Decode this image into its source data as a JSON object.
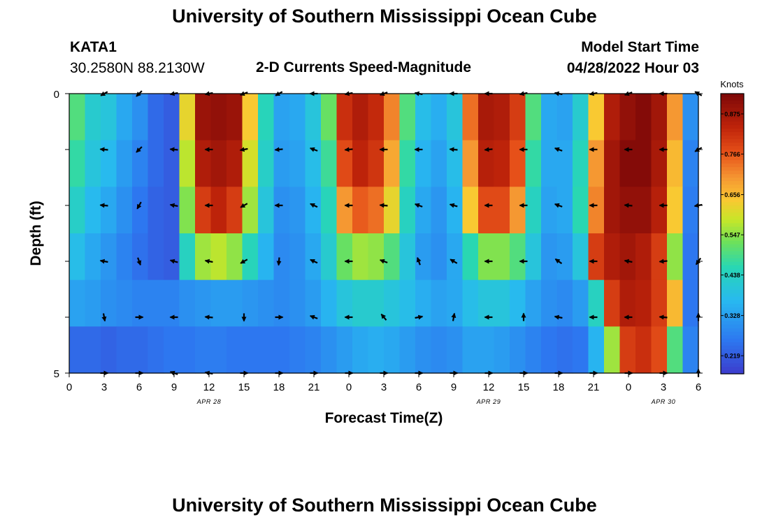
{
  "page": {
    "title": "University of Southern Mississippi Ocean Cube",
    "station_id": "KATA1",
    "station_coords": "30.2580N  88.2130W",
    "product_title": "2-D Currents Speed-Magnitude",
    "model_start_label": "Model Start Time",
    "model_start_value": "04/28/2022 Hour 03",
    "footer_title": "University of Southern Mississippi Ocean Cube"
  },
  "chart_data": {
    "type": "heatmap",
    "xlabel": "Forecast Time(Z)",
    "ylabel": "Depth (ft)",
    "x_hours": [
      0,
      3,
      6,
      9,
      12,
      15,
      18,
      21,
      24,
      27,
      30,
      33,
      36,
      39,
      42,
      45,
      48,
      51,
      54
    ],
    "x_tick_labels": [
      "0",
      "3",
      "6",
      "9",
      "12",
      "15",
      "18",
      "21",
      "0",
      "3",
      "6",
      "9",
      "12",
      "15",
      "18",
      "21",
      "0",
      "3",
      "6"
    ],
    "x_range_hours": [
      0,
      54
    ],
    "date_labels": [
      {
        "text": "APR 28",
        "hour": 12
      },
      {
        "text": "APR 29",
        "hour": 36
      },
      {
        "text": "APR 30",
        "hour": 51
      }
    ],
    "y_tick_labels": [
      {
        "text": "0",
        "depth": 0
      },
      {
        "text": "5",
        "depth": 5
      }
    ],
    "y_range_ft": [
      0,
      5
    ],
    "depth_levels": 5,
    "colorbar": {
      "title": "Knots",
      "tick_labels": [
        "0.875",
        "0.766",
        "0.656",
        "0.547",
        "0.438",
        "0.328",
        "0.219"
      ],
      "range": [
        0.17,
        0.93
      ]
    },
    "speed_knots": [
      [
        0.5,
        0.42,
        0.4,
        0.34,
        0.3,
        0.24,
        0.22,
        0.62,
        0.89,
        0.9,
        0.89,
        0.64,
        0.45,
        0.33,
        0.34,
        0.4,
        0.52,
        0.82,
        0.86,
        0.83,
        0.72,
        0.5,
        0.38,
        0.35,
        0.4,
        0.74,
        0.87,
        0.86,
        0.8,
        0.5,
        0.34,
        0.33,
        0.42,
        0.64,
        0.86,
        0.9,
        0.92,
        0.88,
        0.7,
        0.3
      ],
      [
        0.47,
        0.4,
        0.37,
        0.32,
        0.28,
        0.24,
        0.22,
        0.58,
        0.86,
        0.88,
        0.86,
        0.6,
        0.43,
        0.32,
        0.33,
        0.38,
        0.48,
        0.78,
        0.84,
        0.81,
        0.68,
        0.47,
        0.36,
        0.33,
        0.38,
        0.7,
        0.85,
        0.84,
        0.77,
        0.47,
        0.34,
        0.34,
        0.45,
        0.7,
        0.88,
        0.92,
        0.92,
        0.87,
        0.66,
        0.28
      ],
      [
        0.43,
        0.37,
        0.34,
        0.3,
        0.26,
        0.23,
        0.22,
        0.54,
        0.8,
        0.84,
        0.8,
        0.56,
        0.4,
        0.3,
        0.31,
        0.36,
        0.45,
        0.7,
        0.76,
        0.74,
        0.62,
        0.44,
        0.34,
        0.31,
        0.36,
        0.64,
        0.78,
        0.78,
        0.7,
        0.44,
        0.33,
        0.34,
        0.46,
        0.72,
        0.88,
        0.9,
        0.9,
        0.85,
        0.64,
        0.27
      ],
      [
        0.38,
        0.34,
        0.31,
        0.28,
        0.25,
        0.23,
        0.22,
        0.44,
        0.56,
        0.58,
        0.55,
        0.45,
        0.36,
        0.29,
        0.3,
        0.34,
        0.42,
        0.52,
        0.56,
        0.55,
        0.5,
        0.4,
        0.32,
        0.3,
        0.34,
        0.46,
        0.54,
        0.54,
        0.5,
        0.4,
        0.31,
        0.32,
        0.4,
        0.8,
        0.86,
        0.88,
        0.86,
        0.8,
        0.55,
        0.26
      ],
      [
        0.33,
        0.32,
        0.3,
        0.29,
        0.28,
        0.28,
        0.28,
        0.3,
        0.31,
        0.32,
        0.32,
        0.31,
        0.3,
        0.29,
        0.3,
        0.32,
        0.36,
        0.4,
        0.42,
        0.42,
        0.4,
        0.38,
        0.35,
        0.33,
        0.34,
        0.38,
        0.4,
        0.4,
        0.37,
        0.33,
        0.3,
        0.29,
        0.32,
        0.44,
        0.8,
        0.86,
        0.85,
        0.8,
        0.66,
        0.26
      ],
      [
        0.24,
        0.24,
        0.23,
        0.24,
        0.24,
        0.25,
        0.26,
        0.26,
        0.27,
        0.27,
        0.26,
        0.26,
        0.26,
        0.26,
        0.27,
        0.28,
        0.3,
        0.32,
        0.34,
        0.35,
        0.34,
        0.32,
        0.3,
        0.29,
        0.3,
        0.33,
        0.33,
        0.32,
        0.3,
        0.28,
        0.26,
        0.25,
        0.26,
        0.36,
        0.56,
        0.8,
        0.82,
        0.78,
        0.5,
        0.28
      ]
    ],
    "arrow_hours": [
      0,
      3,
      6,
      9,
      12,
      15,
      18,
      21,
      24,
      27,
      30,
      33,
      36,
      39,
      42,
      45,
      48,
      51,
      54
    ],
    "arrow_direction_deg": [
      [
        null,
        240,
        225,
        260,
        260,
        250,
        240,
        270,
        260,
        250,
        280,
        270,
        270,
        260,
        280,
        260,
        250,
        270,
        300
      ],
      [
        null,
        275,
        225,
        275,
        270,
        260,
        265,
        290,
        265,
        270,
        270,
        275,
        265,
        270,
        290,
        270,
        270,
        270,
        240
      ],
      [
        null,
        275,
        210,
        280,
        270,
        240,
        270,
        295,
        270,
        275,
        290,
        285,
        270,
        270,
        290,
        270,
        275,
        270,
        260
      ],
      [
        null,
        280,
        160,
        285,
        280,
        240,
        185,
        295,
        270,
        290,
        340,
        300,
        270,
        270,
        305,
        270,
        280,
        265,
        215
      ],
      [
        null,
        170,
        90,
        270,
        275,
        180,
        90,
        290,
        270,
        320,
        80,
        10,
        270,
        0,
        280,
        270,
        270,
        275,
        0
      ],
      [
        null,
        90,
        90,
        290,
        280,
        90,
        90,
        90,
        90,
        90,
        90,
        90,
        90,
        90,
        90,
        90,
        90,
        90,
        0
      ]
    ]
  }
}
